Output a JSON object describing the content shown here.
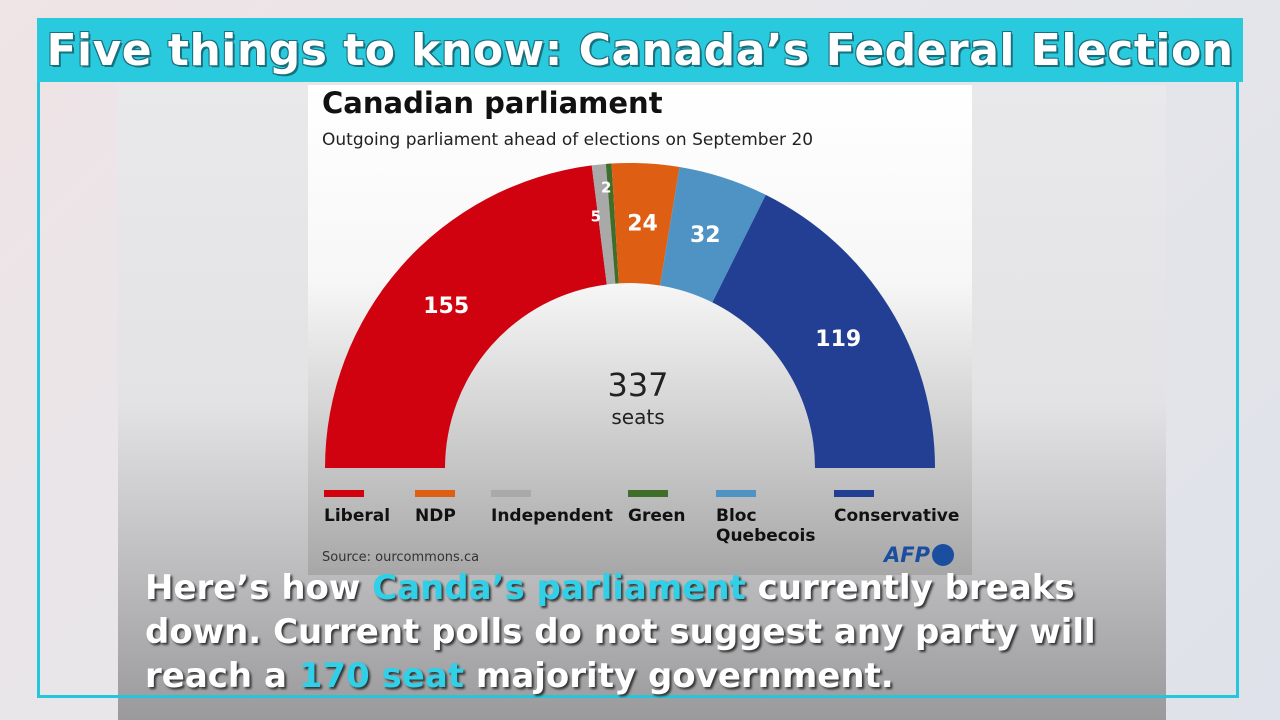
{
  "header": {
    "title": "Five things to know: Canada’s Federal Election"
  },
  "chart_data": {
    "type": "pie",
    "subtype": "semicircle-parliament",
    "title": "Canadian parliament",
    "subtitle": "Outgoing parliament ahead of elections on September 20",
    "total_label": "337",
    "total_unit": "seats",
    "series": [
      {
        "name": "Liberal",
        "value": 155,
        "color": "#d0020f"
      },
      {
        "name": "Independent",
        "value": 5,
        "color": "#a9a9a9"
      },
      {
        "name": "Green",
        "value": 2,
        "color": "#3f6e2a"
      },
      {
        "name": "NDP",
        "value": 24,
        "color": "#de5f14"
      },
      {
        "name": "Bloc Quebecois",
        "value": 32,
        "color": "#4f93c4"
      },
      {
        "name": "Conservative",
        "value": 119,
        "color": "#233f93"
      }
    ],
    "legend_order": [
      "Liberal",
      "NDP",
      "Independent",
      "Green",
      "Bloc Quebecois",
      "Conservative"
    ],
    "source": "Source: ourcommons.ca",
    "logo": "AFP"
  },
  "caption": {
    "part1": "Here’s how ",
    "highlight1": "Canda’s parliament",
    "part2": " currently breaks down. Current polls do not suggest any party will reach a ",
    "highlight2": "170 seat",
    "part3": " majority government."
  },
  "colors": {
    "accent": "#29c9de"
  }
}
